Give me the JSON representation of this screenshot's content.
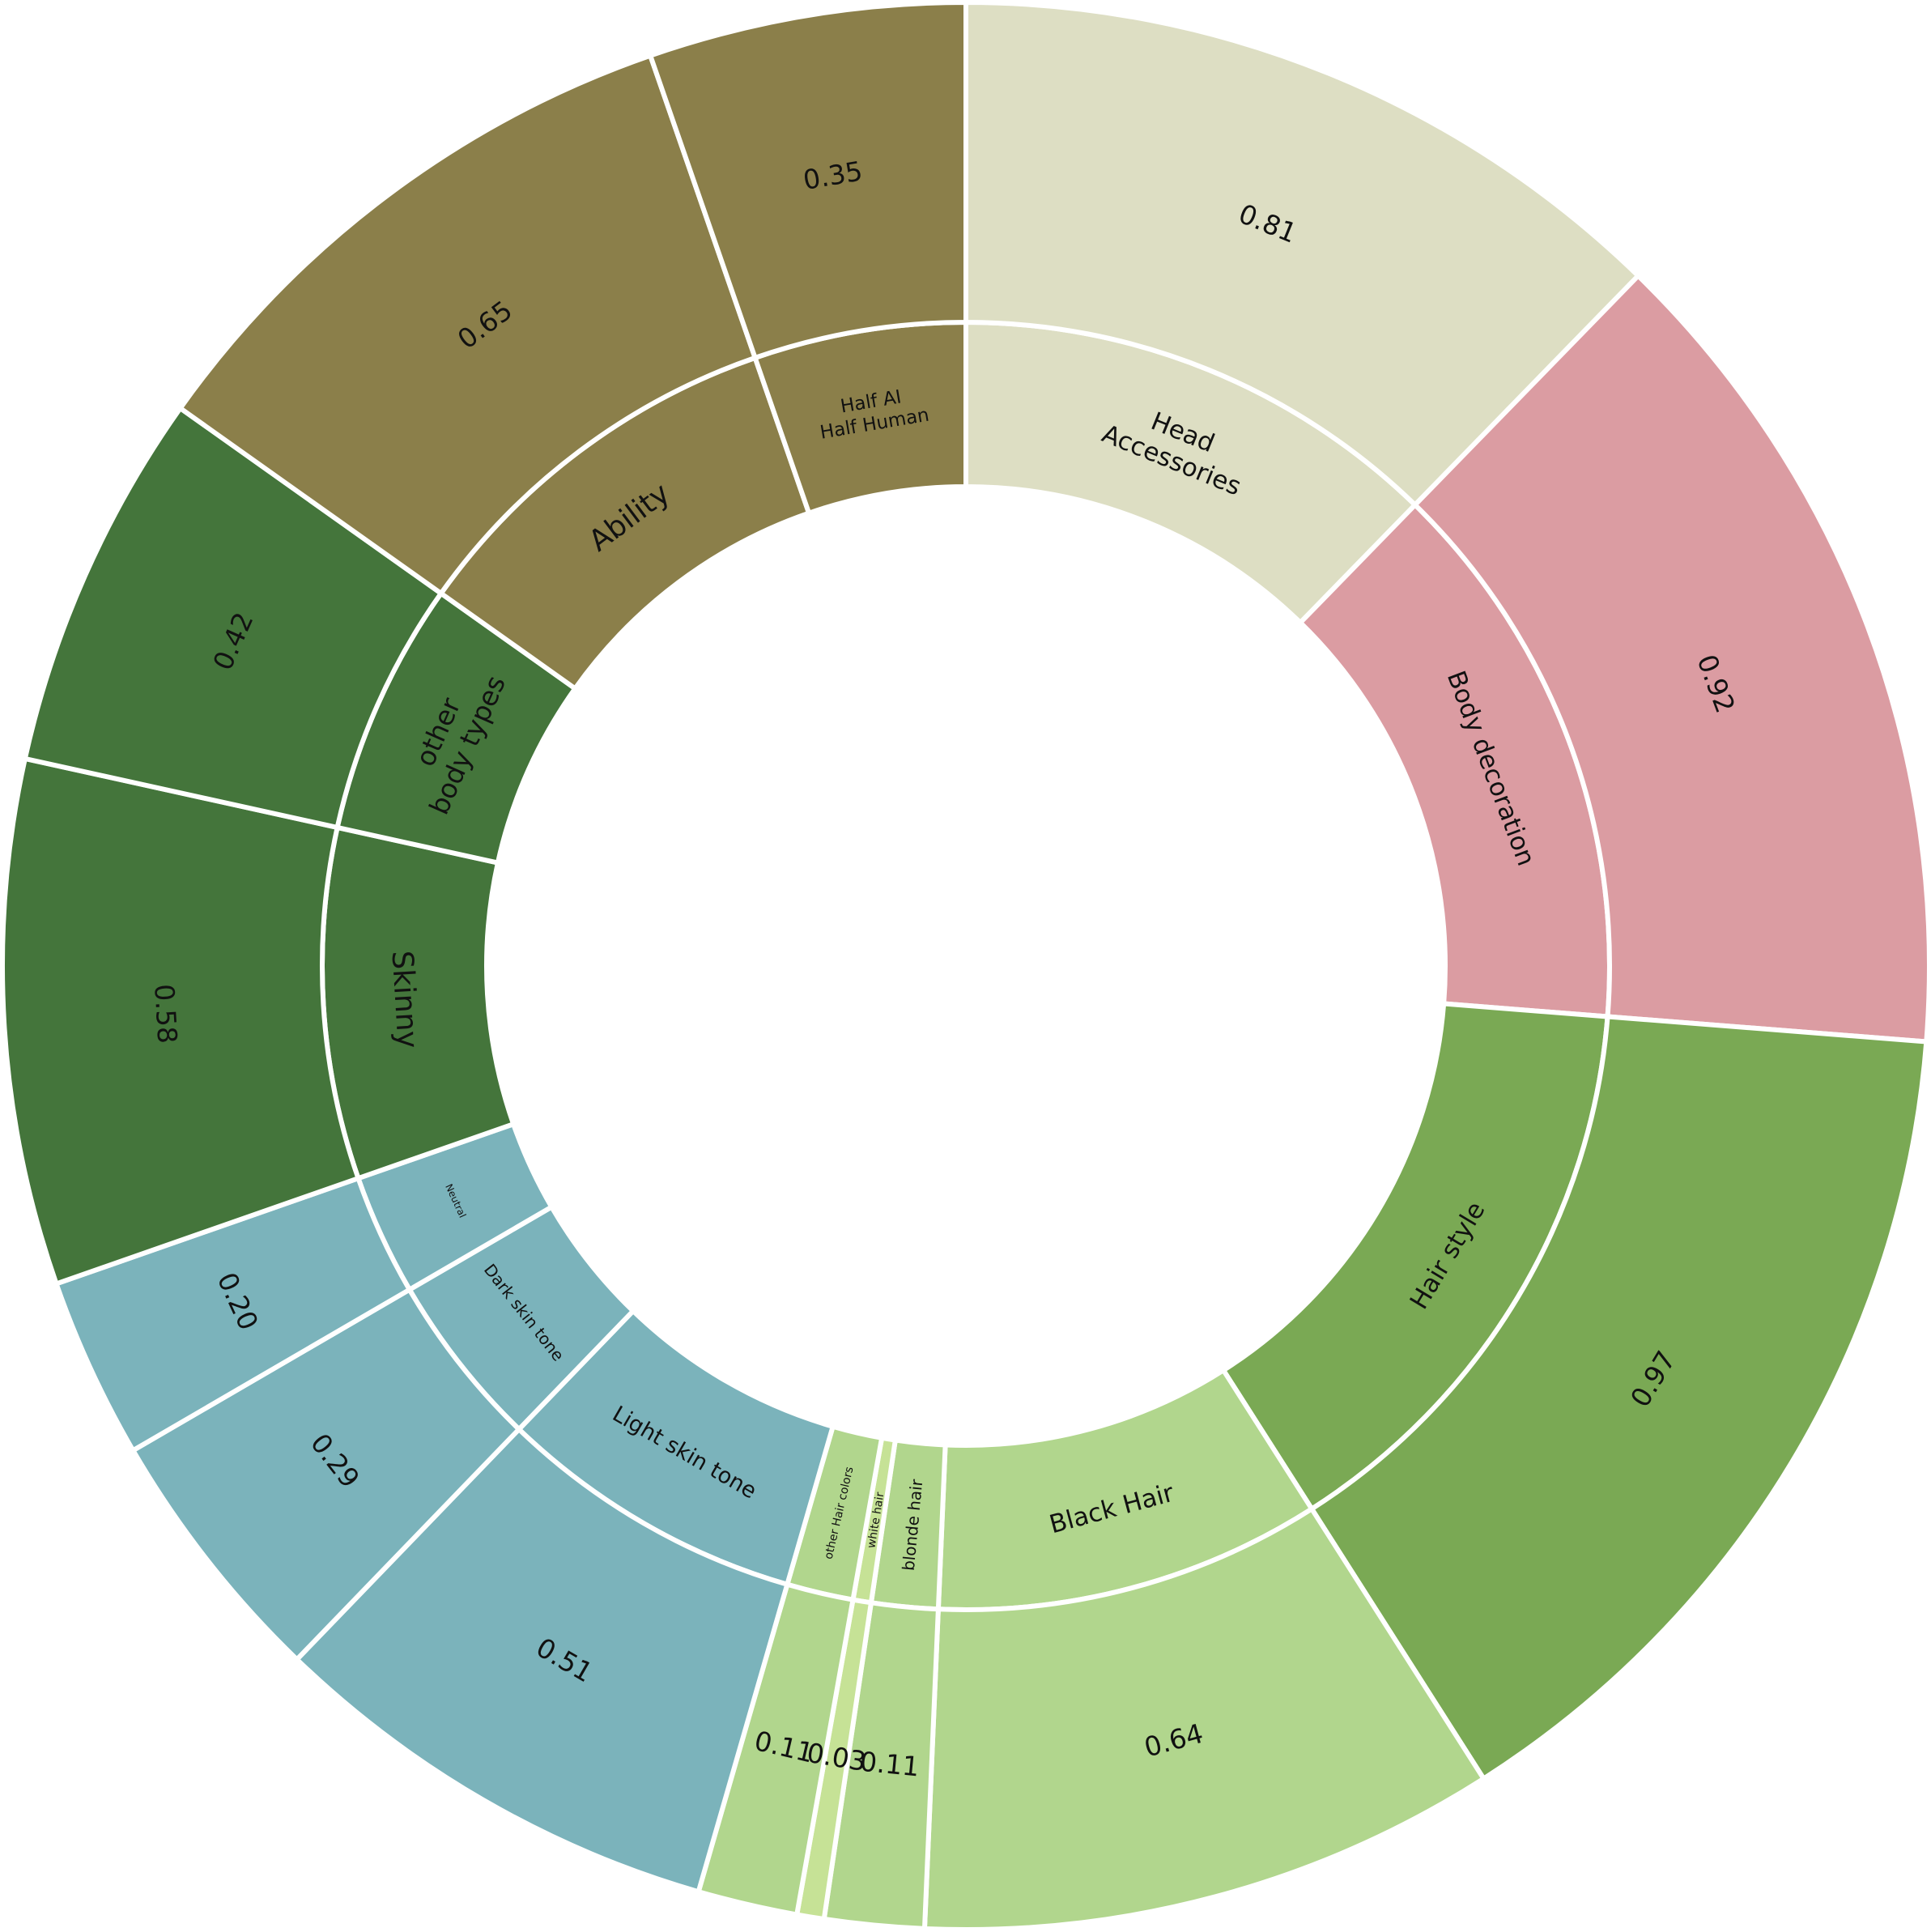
{
  "chart_data": {
    "type": "sunburst",
    "colors": {
      "head": "#dddec3",
      "body": "#db9ca2",
      "hair_outer": "#7aa954",
      "hair_inner": "#b1d68d",
      "hair_thin": "#c6e296",
      "skin": "#7bb3bb",
      "body_type": "#44753b",
      "ability": "#8b7f4a"
    },
    "inner": [
      {
        "label": "Head\nAccessories",
        "value": 0.81,
        "color": "head",
        "lfs": 31
      },
      {
        "label": "Body decoration",
        "value": 0.92,
        "color": "body",
        "lfs": 31
      },
      {
        "label": "Hair style",
        "value": 0.97,
        "color": "hair_outer",
        "lfs": 31
      },
      {
        "label": "Black Hair",
        "value": 0.64,
        "color": "hair_inner",
        "lfs": 31
      },
      {
        "label": "blonde hair",
        "value": 0.11,
        "color": "hair_inner",
        "lfs": 20
      },
      {
        "label": "white hair",
        "value": 0.03,
        "color": "hair_thin",
        "lfs": 14
      },
      {
        "label": "other Hair colors",
        "value": 0.11,
        "color": "hair_inner",
        "lfs": 14
      },
      {
        "label": "Light skin tone",
        "value": 0.51,
        "color": "skin",
        "lfs": 27
      },
      {
        "label": "Dark skin tone",
        "value": 0.29,
        "color": "skin",
        "lfs": 20
      },
      {
        "label": "Neutral",
        "value": 0.2,
        "color": "skin",
        "lfs": 12
      },
      {
        "label": "Skinny",
        "value": 0.58,
        "color": "body_type",
        "lfs": 36
      },
      {
        "label": "other\nbody types",
        "value": 0.42,
        "color": "body_type",
        "lfs": 33
      },
      {
        "label": "Ability",
        "value": 0.65,
        "color": "ability",
        "lfs": 36
      },
      {
        "label": "Half AI\nHalf Human",
        "value": 0.35,
        "color": "ability",
        "lfs": 23
      }
    ],
    "outer": [
      {
        "label": "0.81",
        "value": 0.81,
        "color": "head"
      },
      {
        "label": "0.92",
        "value": 0.92,
        "color": "body"
      },
      {
        "label": "0.97",
        "value": 0.97,
        "color": "hair_outer"
      },
      {
        "label": "0.64",
        "value": 0.64,
        "color": "hair_inner"
      },
      {
        "label": "0.11",
        "value": 0.11,
        "color": "hair_inner"
      },
      {
        "label": "0.03",
        "value": 0.03,
        "color": "hair_thin"
      },
      {
        "label": "0.11",
        "value": 0.11,
        "color": "hair_inner"
      },
      {
        "label": "0.51",
        "value": 0.51,
        "color": "skin"
      },
      {
        "label": "0.29",
        "value": 0.29,
        "color": "skin"
      },
      {
        "label": "0.20",
        "value": 0.2,
        "color": "skin"
      },
      {
        "label": "0.58",
        "value": 0.58,
        "color": "body_type"
      },
      {
        "label": "0.42",
        "value": 0.42,
        "color": "body_type"
      },
      {
        "label": "0.65",
        "value": 0.65,
        "color": "ability"
      },
      {
        "label": "0.35",
        "value": 0.35,
        "color": "ability"
      }
    ]
  }
}
